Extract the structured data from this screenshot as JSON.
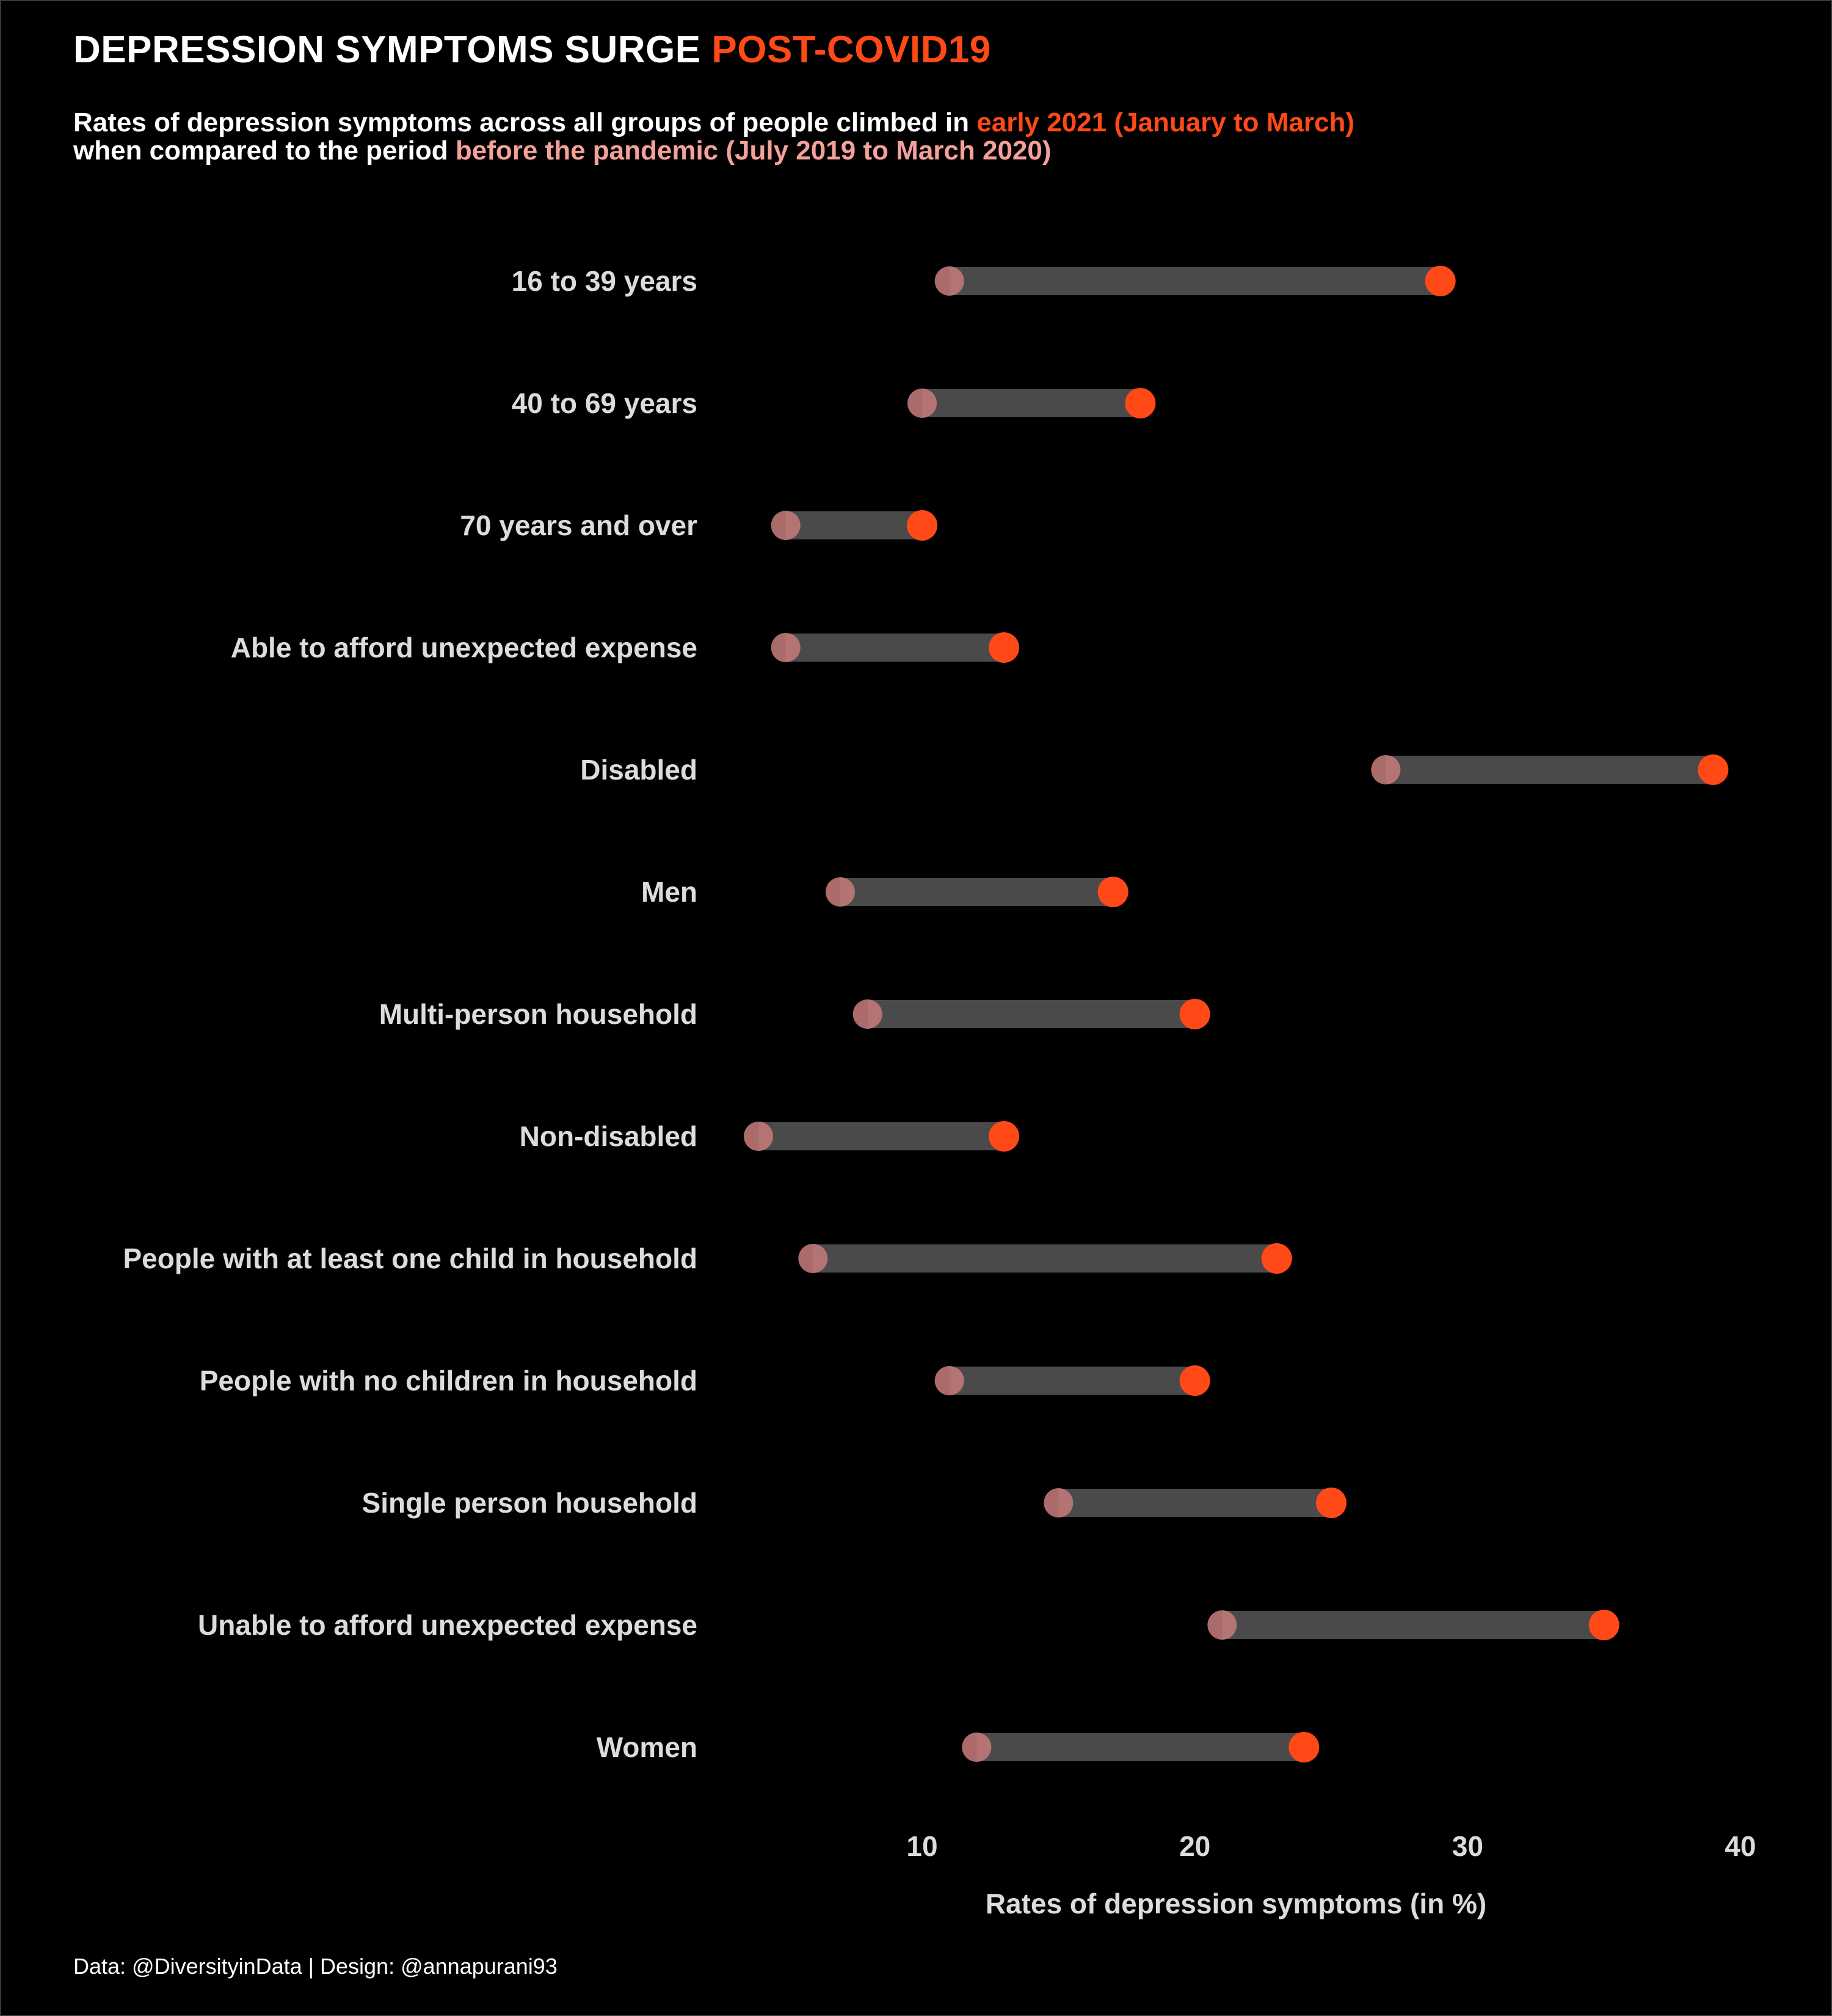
{
  "header": {
    "title_main": "DEPRESSION SYMPTOMS SURGE ",
    "title_highlight": "POST-COVID19",
    "subtitle_line1_a": "Rates of depression symptoms across all groups of people climbed in ",
    "subtitle_line1_hl": "early 2021 (January to March)",
    "subtitle_line2_a": "when compared to the period ",
    "subtitle_line2_hl": "before the pandemic (July 2019 to March 2020)"
  },
  "caption": "Data: @DiversityinData | Design: @annapurani93",
  "colors": {
    "background": "#000000",
    "after": "#ff4a17",
    "before": "#c47a7a",
    "segment": "#4a4a4a",
    "text": "#dcdcdc"
  },
  "chart_data": {
    "type": "dumbbell",
    "title": "DEPRESSION SYMPTOMS SURGE POST-COVID19",
    "xlabel": "Rates of depression symptoms (in %)",
    "ylabel": "",
    "xlim": [
      3,
      40
    ],
    "xticks": [
      10,
      20,
      30,
      40
    ],
    "grid": false,
    "categories": [
      "16 to 39 years",
      "40 to 69 years",
      "70 years and over",
      "Able to afford unexpected expense",
      "Disabled",
      "Men",
      "Multi-person household",
      "Non-disabled",
      "People with at least one child in household",
      "People with no children in household",
      "Single person household",
      "Unable to afford unexpected expense",
      "Women"
    ],
    "series": [
      {
        "name": "before the pandemic (July 2019 to March 2020)",
        "values": [
          11,
          10,
          5,
          5,
          27,
          7,
          8,
          4,
          6,
          11,
          15,
          21,
          12
        ]
      },
      {
        "name": "early 2021 (January to March)",
        "values": [
          29,
          18,
          10,
          13,
          39,
          17,
          20,
          13,
          23,
          20,
          25,
          35,
          24
        ]
      }
    ]
  }
}
